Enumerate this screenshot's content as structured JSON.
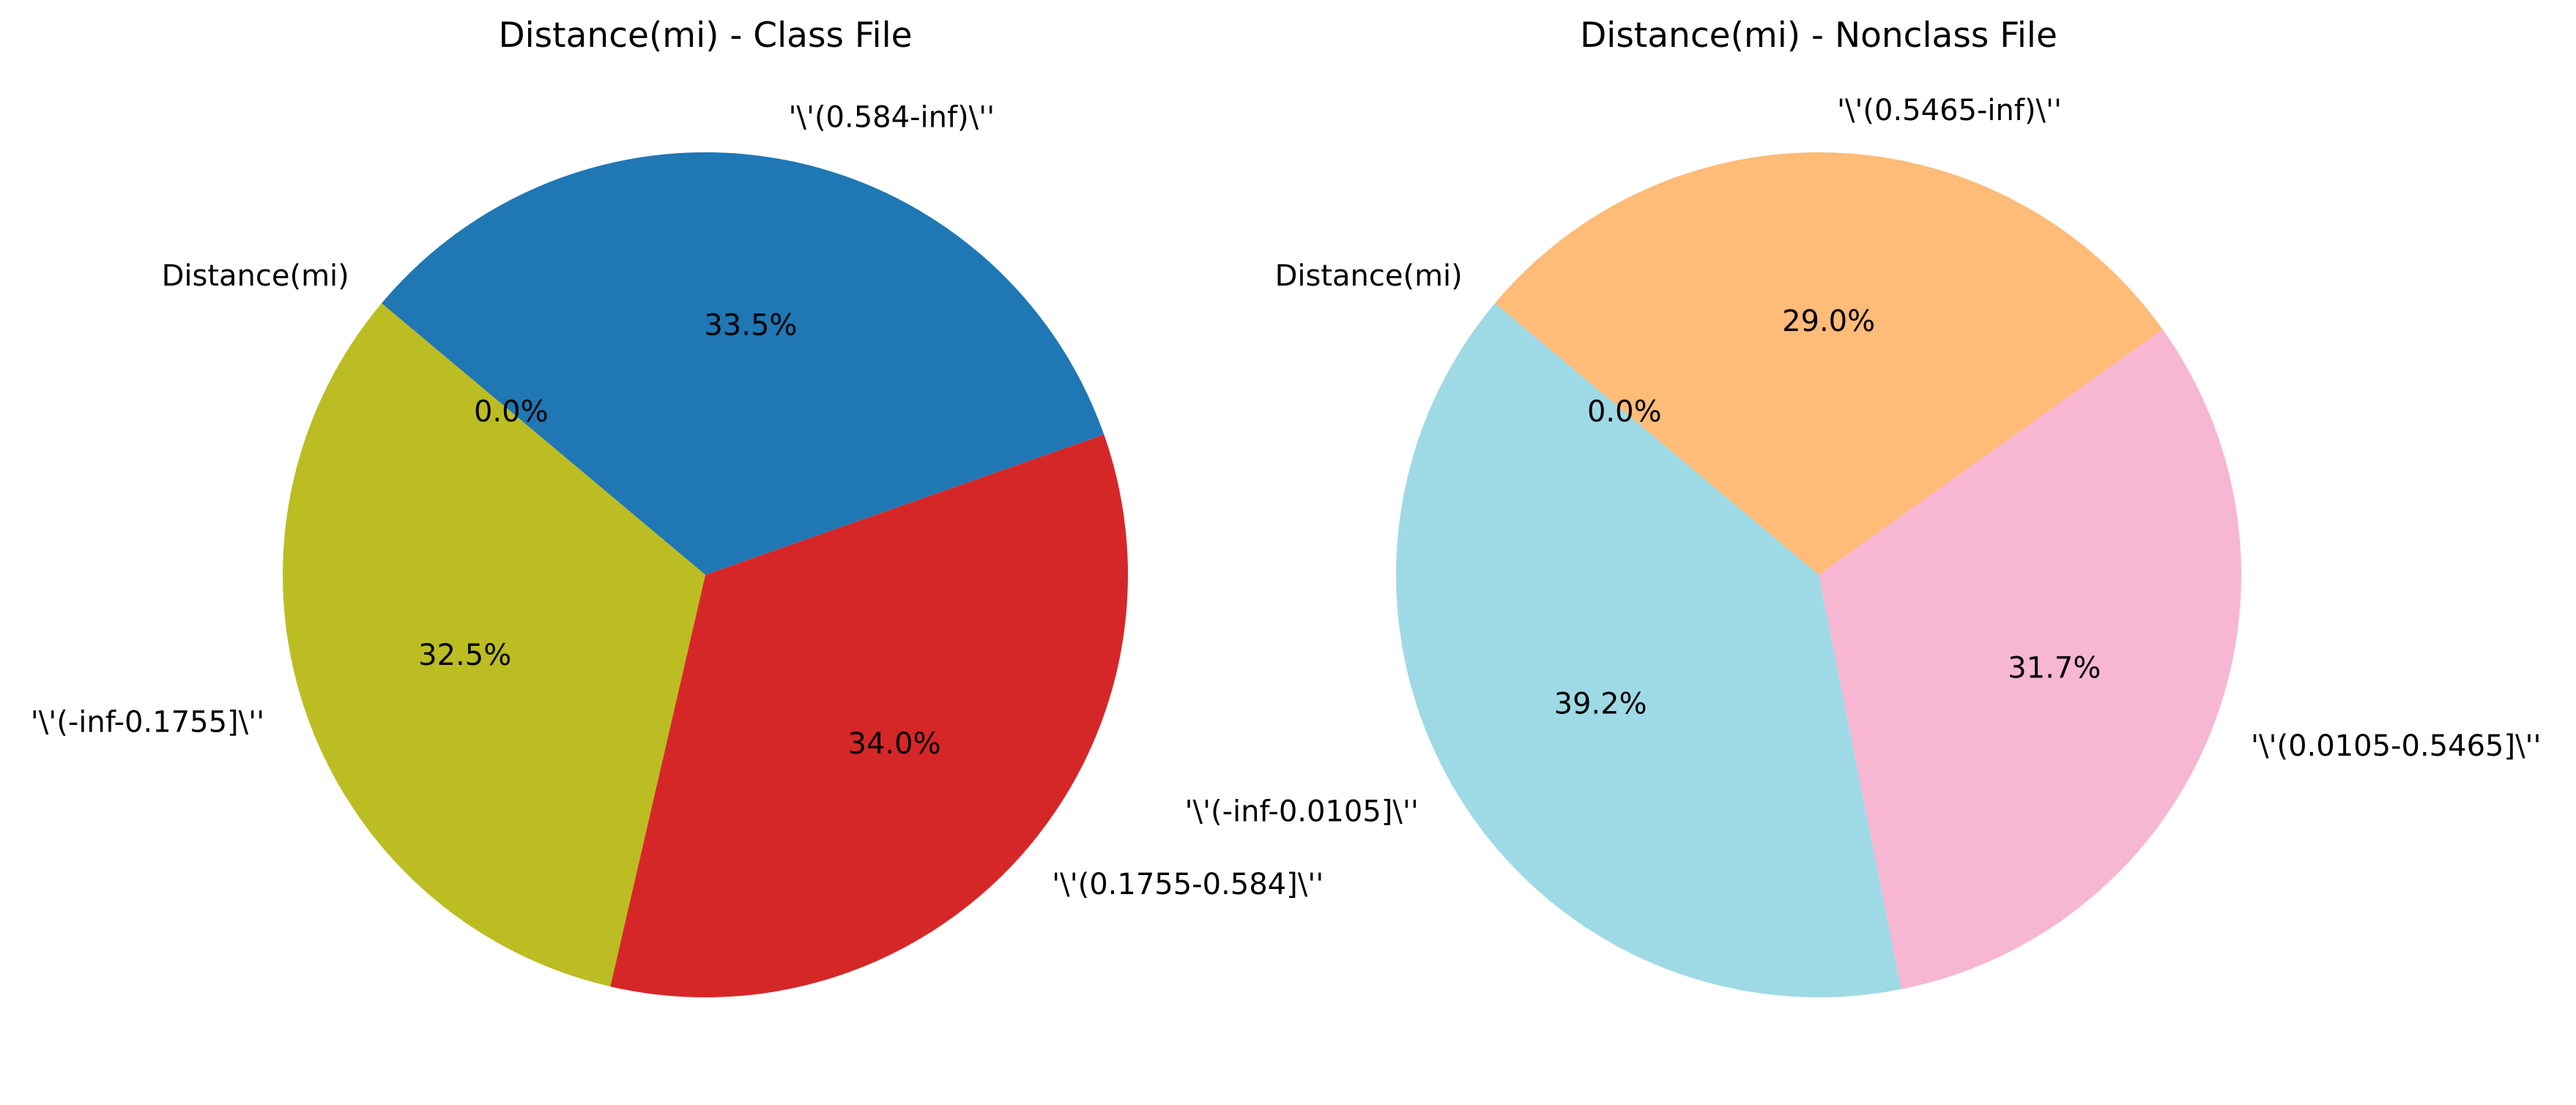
{
  "chart_data": [
    {
      "type": "pie",
      "title": "Distance(mi) - Class File",
      "labels": [
        "Distance(mi)",
        "'\\'(0.584-inf)\\''",
        "'\\'(0.1755-0.584]\\''",
        "'\\'(-inf-0.1755]\\''"
      ],
      "values": [
        0.0,
        33.5,
        34.0,
        32.5
      ],
      "value_labels": [
        "0.0%",
        "33.5%",
        "34.0%",
        "32.5%"
      ],
      "colors": [
        "#bcbd22",
        "#1f77b4",
        "#d62728",
        "#bcbd22"
      ],
      "start_angle_deg": 140,
      "direction": "clockwise",
      "legend": "none"
    },
    {
      "type": "pie",
      "title": "Distance(mi) - Nonclass File",
      "labels": [
        "Distance(mi)",
        "'\\'(0.5465-inf)\\''",
        "'\\'(0.0105-0.5465]\\''",
        "'\\'(-inf-0.0105]\\''"
      ],
      "values": [
        0.0,
        29.0,
        31.7,
        39.2
      ],
      "value_labels": [
        "0.0%",
        "29.0%",
        "31.7%",
        "39.2%"
      ],
      "colors": [
        "#9edae5",
        "#ffbb78",
        "#f7b6d2",
        "#9edae5"
      ],
      "start_angle_deg": 140,
      "direction": "clockwise",
      "legend": "none"
    }
  ]
}
